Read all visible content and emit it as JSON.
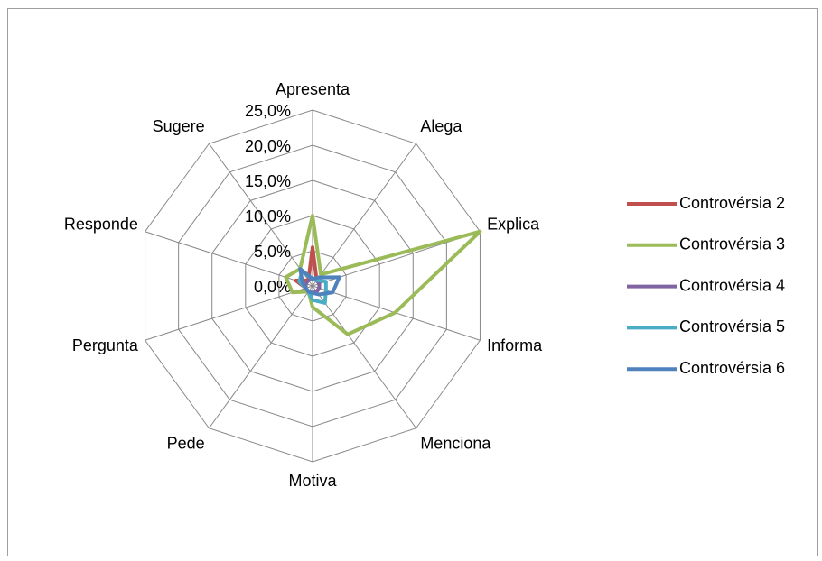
{
  "chart_data": {
    "type": "radar",
    "categories": [
      "Apresenta",
      "Alega",
      "Explica",
      "Informa",
      "Menciona",
      "Motiva",
      "Pede",
      "Pergunta",
      "Responde",
      "Sugere"
    ],
    "series": [
      {
        "name": "Controvérsia 2",
        "color": "#c0504d",
        "values": [
          5.5,
          1,
          1,
          1,
          1,
          1,
          1,
          1,
          2.5,
          1
        ]
      },
      {
        "name": "Controvérsia 3",
        "color": "#9bbb59",
        "values": [
          10,
          2,
          25,
          12.3,
          8.5,
          3,
          1,
          3,
          4,
          3
        ]
      },
      {
        "name": "Controvérsia 4",
        "color": "#8064a2",
        "values": [
          1,
          1,
          1,
          1,
          1,
          1,
          1,
          1,
          1,
          1
        ]
      },
      {
        "name": "Controvérsia 5",
        "color": "#4bacc6",
        "values": [
          1,
          1,
          2,
          2,
          3,
          2,
          1,
          1,
          2,
          2.5
        ]
      },
      {
        "name": "Controvérsia 6",
        "color": "#4f81bd",
        "values": [
          1,
          1.5,
          4,
          3,
          1.5,
          1,
          1,
          1,
          1.5,
          3
        ]
      }
    ],
    "ylim": [
      0,
      25
    ],
    "yticks": [
      {
        "value": 0,
        "label": "0,0%"
      },
      {
        "value": 5,
        "label": "5,0%"
      },
      {
        "value": 10,
        "label": "10,0%"
      },
      {
        "value": 15,
        "label": "15,0%"
      },
      {
        "value": 20,
        "label": "20,0%"
      },
      {
        "value": 25,
        "label": "25,0%"
      }
    ],
    "grid": true,
    "legend": "right"
  }
}
